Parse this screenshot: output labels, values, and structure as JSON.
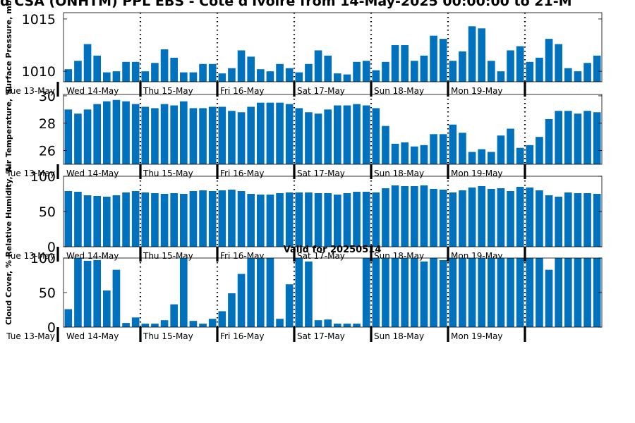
{
  "figure": {
    "title": "d CSA (ONHTM) PPL EBS - Cote d'Ivoire from 14-May-2025 00:00:00 to 21-M",
    "valid_text": "Valid for 20250514",
    "bar_color": "#0072bd"
  },
  "chart_data": [
    {
      "type": "bar",
      "ylabel": "Surface Pressure, mb",
      "ylim": [
        1009,
        1015.6
      ],
      "yticks": [
        1010,
        1015
      ],
      "xlim": [
        0,
        56
      ],
      "day_start_label": "Tue 13-May",
      "day_labels": [
        "Wed 14-May",
        "Thu 15-May",
        "Fri 16-May",
        "Sat 17-May",
        "Sun 18-May",
        "Mon 19-May"
      ],
      "day_boundaries": [
        8,
        16,
        24,
        32,
        40,
        48
      ],
      "values": [
        1010.2,
        1011.0,
        1012.6,
        1011.5,
        1009.9,
        1010.0,
        1010.9,
        1010.9,
        1010.0,
        1010.8,
        1012.1,
        1011.3,
        1009.9,
        1009.9,
        1010.7,
        1010.7,
        1009.8,
        1010.3,
        1012.0,
        1011.4,
        1010.2,
        1010.0,
        1010.7,
        1010.3,
        1009.9,
        1010.7,
        1012.0,
        1011.5,
        1009.8,
        1009.7,
        1010.9,
        1011.0,
        1010.1,
        1010.9,
        1012.5,
        1012.5,
        1011.0,
        1011.5,
        1013.4,
        1013.1,
        1011.0,
        1011.9,
        1014.3,
        1014.1,
        1011.0,
        1010.0,
        1012.0,
        1012.4,
        1010.9,
        1011.3,
        1013.1,
        1012.6,
        1010.3,
        1010.0,
        1010.8,
        1011.5
      ]
    },
    {
      "type": "bar",
      "ylabel": "Air Temperature, °C",
      "ylim": [
        25.0,
        30.1
      ],
      "yticks": [
        26,
        28,
        30
      ],
      "xlim": [
        0,
        56
      ],
      "day_start_label": "Tue 13-May",
      "day_labels": [
        "Wed 14-May",
        "Thu 15-May",
        "Fri 16-May",
        "Sat 17-May",
        "Sun 18-May",
        "Mon 19-May"
      ],
      "day_boundaries": [
        8,
        16,
        24,
        32,
        40,
        48
      ],
      "values": [
        29.0,
        28.7,
        29.0,
        29.4,
        29.6,
        29.7,
        29.6,
        29.4,
        29.2,
        29.1,
        29.4,
        29.3,
        29.6,
        29.1,
        29.1,
        29.2,
        29.2,
        28.9,
        28.8,
        29.2,
        29.5,
        29.5,
        29.5,
        29.4,
        29.1,
        28.8,
        28.7,
        29.0,
        29.3,
        29.3,
        29.4,
        29.3,
        29.1,
        27.8,
        26.5,
        26.6,
        26.3,
        26.4,
        27.2,
        27.2,
        27.9,
        27.3,
        25.9,
        26.1,
        25.9,
        27.1,
        27.6,
        26.2,
        26.4,
        27.0,
        28.3,
        28.9,
        28.9,
        28.7,
        28.9,
        28.8
      ]
    },
    {
      "type": "bar",
      "ylabel": "Relative Humidity, %",
      "ylim": [
        0,
        100
      ],
      "yticks": [
        0,
        50,
        100
      ],
      "xlim": [
        0,
        56
      ],
      "day_start_label": "Tue 13-May",
      "day_labels": [
        "Wed 14-May",
        "Thu 15-May",
        "Fri 16-May",
        "Sat 17-May",
        "Sun 18-May",
        "Mon 19-May"
      ],
      "day_boundaries": [
        8,
        16,
        24,
        32,
        40,
        48
      ],
      "values": [
        79,
        78,
        73,
        72,
        71,
        73,
        77,
        79,
        77,
        76,
        75,
        76,
        75,
        79,
        80,
        79,
        80,
        81,
        79,
        75,
        74,
        74,
        76,
        77,
        77,
        77,
        76,
        76,
        74,
        76,
        78,
        78,
        77,
        83,
        87,
        86,
        86,
        87,
        82,
        81,
        77,
        80,
        84,
        86,
        82,
        83,
        79,
        85,
        84,
        80,
        73,
        71,
        77,
        76,
        76,
        75
      ]
    },
    {
      "type": "bar",
      "ylabel": "Cloud Cover, %",
      "ylim": [
        0,
        100
      ],
      "yticks": [
        0,
        50,
        100
      ],
      "xlim": [
        0,
        56
      ],
      "day_start_label": "Tue 13-May",
      "day_labels": [
        "Wed 14-May",
        "Thu 15-May",
        "Fri 16-May",
        "Sat 17-May",
        "Sun 18-May",
        "Mon 19-May"
      ],
      "day_boundaries": [
        8,
        16,
        24,
        32,
        40,
        48
      ],
      "values": [
        26,
        100,
        96,
        97,
        53,
        83,
        6,
        14,
        5,
        5,
        10,
        33,
        100,
        9,
        5,
        12,
        23,
        49,
        77,
        100,
        100,
        100,
        12,
        62,
        100,
        95,
        10,
        11,
        5,
        5,
        5,
        100,
        100,
        100,
        100,
        100,
        100,
        95,
        100,
        97,
        100,
        100,
        100,
        100,
        100,
        100,
        100,
        100,
        100,
        100,
        83,
        100,
        100,
        100,
        100,
        100
      ]
    }
  ]
}
